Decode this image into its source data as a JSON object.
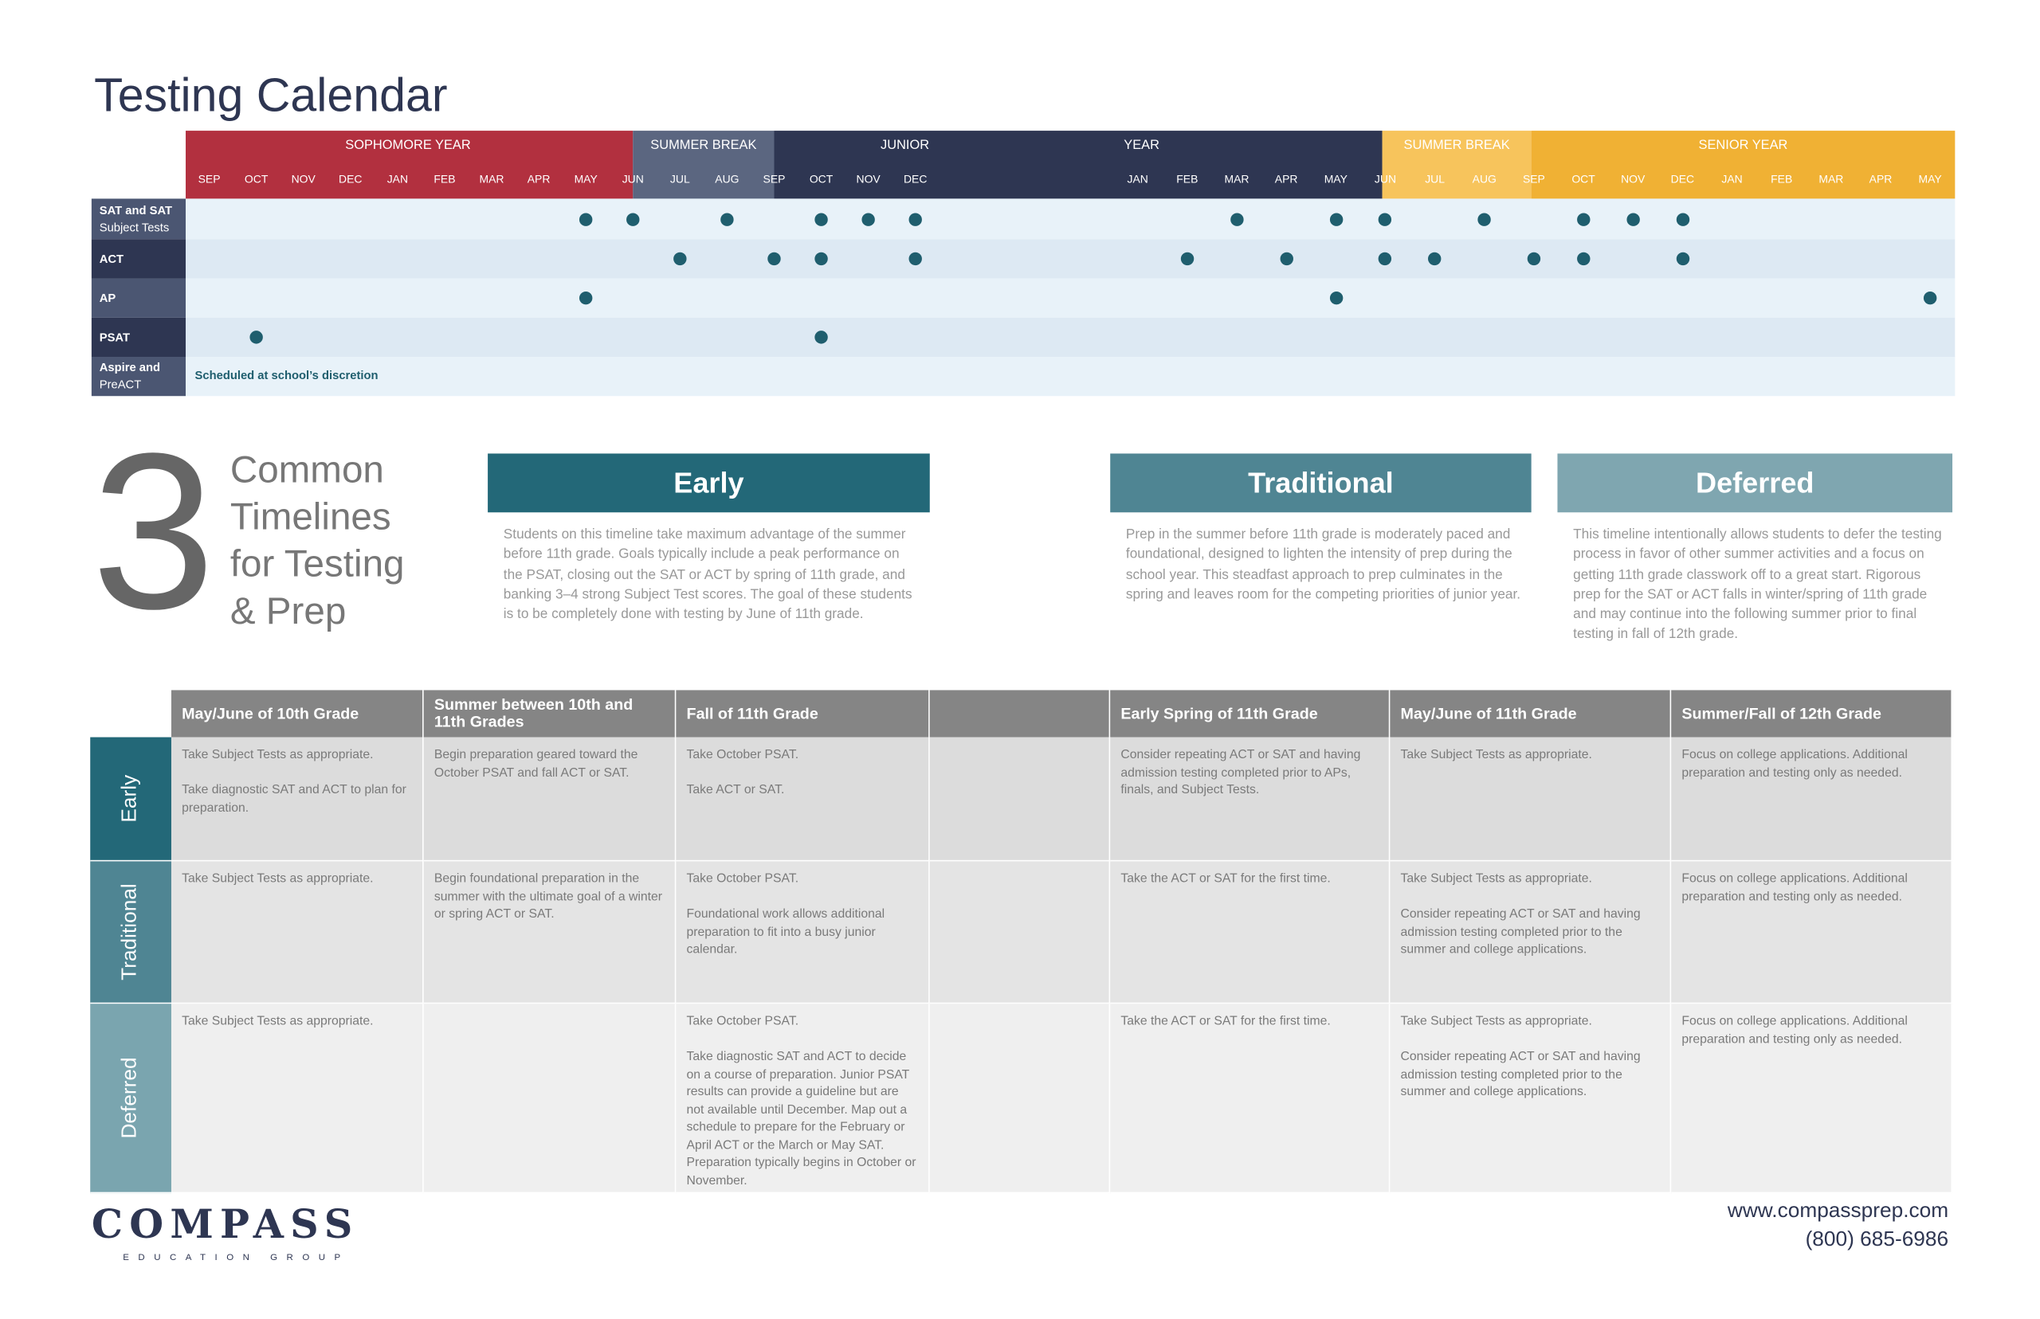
{
  "title": "Testing Calendar",
  "calendar": {
    "periods": [
      "SOPHOMORE YEAR",
      "SUMMER BREAK",
      "JUNIOR",
      "YEAR",
      "SUMMER BREAK",
      "SENIOR YEAR"
    ],
    "months": [
      "SEP",
      "OCT",
      "NOV",
      "DEC",
      "JAN",
      "FEB",
      "MAR",
      "APR",
      "MAY",
      "JUN",
      "JUL",
      "AUG",
      "SEP",
      "OCT",
      "NOV",
      "DEC",
      "JAN",
      "FEB",
      "MAR",
      "APR",
      "MAY",
      "JUN",
      "JUL",
      "AUG",
      "SEP",
      "OCT",
      "NOV",
      "DEC",
      "JAN",
      "FEB",
      "MAR",
      "APR",
      "MAY"
    ],
    "rows": [
      {
        "label": [
          "SAT and SAT",
          "Subject Tests"
        ]
      },
      {
        "label": [
          "ACT"
        ]
      },
      {
        "label": [
          "AP"
        ]
      },
      {
        "label": [
          "PSAT"
        ]
      },
      {
        "label": [
          "Aspire and",
          "PreACT"
        ]
      }
    ],
    "note": "Scheduled at school’s discretion"
  },
  "intro": {
    "number": "3",
    "heading": [
      "Common",
      "Timelines",
      "for Testing",
      "& Prep"
    ]
  },
  "timelines": [
    {
      "name": "Early",
      "description": "Students on this timeline take maximum advantage of the summer before 11th grade. Goals typically include a peak performance on the PSAT, closing out the SAT or ACT by spring of 11th grade, and banking 3–4 strong Subject Test scores. The goal of these students is to be completely done with testing by June of 11th grade."
    },
    {
      "name": "Traditional",
      "description": "Prep in the summer before 11th grade is moderately paced and foundational, designed to lighten the intensity of prep during the school year. This steadfast approach to prep culminates in the spring and leaves room for the competing priorities of junior year."
    },
    {
      "name": "Deferred",
      "description": "This timeline intentionally allows students to defer the testing process in favor of other summer activities and a focus on getting 11th grade classwork off to a great start. Rigorous prep for the SAT or ACT falls in winter/spring of 11th grade and may continue into the following summer prior to final testing in fall of 12th grade."
    }
  ],
  "table": {
    "columns": [
      "May/June of 10th Grade",
      "Summer between 10th and 11th Grades",
      "Fall of 11th Grade",
      null,
      "Early Spring of 11th Grade",
      "May/June of 11th Grade",
      "Summer/Fall of 12th Grade"
    ],
    "rows": [
      {
        "name": "Early",
        "cells": [
          [
            "Take Subject Tests as appropriate.",
            "Take diagnostic SAT and ACT to plan for preparation."
          ],
          [
            "Begin preparation geared toward the October PSAT and fall ACT or SAT."
          ],
          [
            "Take October PSAT.",
            "Take ACT or SAT."
          ],
          null,
          [
            "Consider repeating ACT or SAT and having admission testing completed prior to APs, finals, and Subject Tests."
          ],
          [
            "Take Subject Tests as appropriate."
          ],
          [
            "Focus on college applications. Additional preparation and testing only as needed."
          ]
        ]
      },
      {
        "name": "Traditional",
        "cells": [
          [
            "Take Subject Tests as appropriate."
          ],
          [
            "Begin foundational preparation in the summer with the ultimate goal of a winter or spring ACT or SAT."
          ],
          [
            "Take October PSAT.",
            "Foundational work allows additional preparation to fit into a busy junior calendar."
          ],
          null,
          [
            "Take the ACT or SAT for the first time."
          ],
          [
            "Take Subject Tests as appropriate.",
            "Consider repeating ACT or SAT and having admission testing completed prior to the summer and college applications."
          ],
          [
            "Focus on college applications. Additional preparation and testing only as needed."
          ]
        ]
      },
      {
        "name": "Deferred",
        "cells": [
          [
            "Take Subject Tests as appropriate."
          ],
          null,
          [
            "Take October PSAT.",
            "Take diagnostic SAT and ACT to decide on a course of preparation. Junior PSAT results can provide a guideline but are not available until December. Map out a schedule to prepare for the February or April ACT or the March or May SAT. Preparation typically begins in October or November."
          ],
          null,
          [
            "Take the ACT or SAT for the first time."
          ],
          [
            "Take Subject Tests as appropriate.",
            "Consider repeating ACT or SAT and having admission testing completed prior to the summer and college applications."
          ],
          [
            "Focus on college applications. Additional preparation and testing only as needed."
          ]
        ]
      }
    ]
  },
  "footer": {
    "brand": "COMPASS",
    "tagline": "EDUCATION GROUP",
    "url": "www.compassprep.com",
    "phone": "(800) 685-6986"
  }
}
